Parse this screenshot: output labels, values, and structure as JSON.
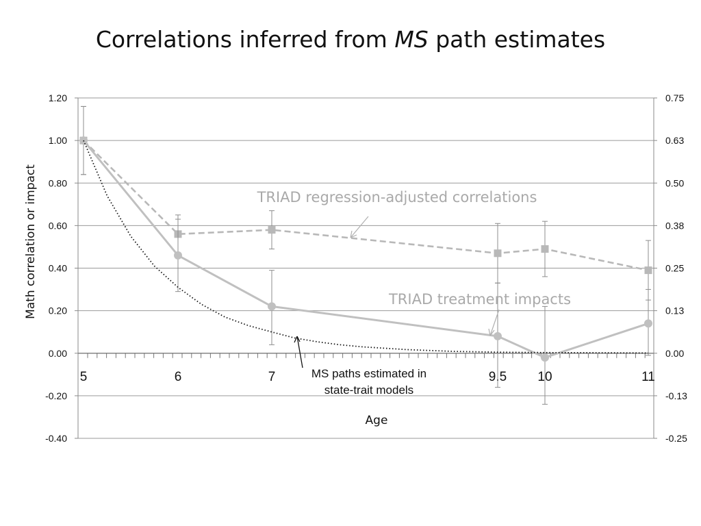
{
  "slide": {
    "title_pre": "Correlations inferred from ",
    "title_em": "MS",
    "title_post": " path estimates"
  },
  "chart_data": {
    "type": "line",
    "xlabel": "Age",
    "ylabel": "Math correlation or impact",
    "grid": true,
    "ylim": [
      -0.4,
      1.2
    ],
    "y2lim": [
      -0.25,
      0.75
    ],
    "x_tick_labels": [
      "5",
      "6",
      "7",
      "9.5",
      "10",
      "11"
    ],
    "y_tick_labels": [
      "1.20",
      "1.00",
      "0.80",
      "0.60",
      "0.40",
      "0.20",
      "0.00",
      "-0.20",
      "-0.40"
    ],
    "y2_tick_labels": [
      "0.75",
      "0.63",
      "0.50",
      "0.38",
      "0.25",
      "0.13",
      "0.00",
      "-0.13",
      "-0.25"
    ],
    "series": [
      {
        "name": "TRIAD regression-adjusted correlations",
        "style": "dashed-square",
        "color": "#b8b8b8",
        "x": [
          5,
          6,
          7,
          9.5,
          10,
          11
        ],
        "y": [
          1.0,
          0.56,
          0.58,
          0.47,
          0.49,
          0.39
        ],
        "err_low": [
          0.84,
          0.47,
          0.49,
          0.33,
          0.36,
          0.25
        ],
        "err_high": [
          1.16,
          0.65,
          0.67,
          0.61,
          0.62,
          0.53
        ]
      },
      {
        "name": "TRIAD treatment impacts",
        "style": "solid-circle",
        "color": "#c0c0c0",
        "x": [
          5,
          6,
          7,
          9.5,
          10,
          11
        ],
        "y": [
          1.0,
          0.46,
          0.22,
          0.08,
          -0.02,
          0.14
        ],
        "err_low": [
          0.84,
          0.29,
          0.04,
          -0.16,
          -0.24,
          -0.01
        ],
        "err_high": [
          1.16,
          0.63,
          0.39,
          0.33,
          0.22,
          0.3
        ]
      },
      {
        "name": "MS paths estimated in state-trait models",
        "style": "dotted",
        "color": "#111111",
        "x": [
          5,
          5.25,
          5.5,
          5.75,
          6,
          6.25,
          6.5,
          6.75,
          7,
          7.25,
          7.5,
          7.75,
          8,
          8.5,
          9,
          9.5,
          10,
          10.5,
          11
        ],
        "y": [
          1.0,
          0.74,
          0.55,
          0.41,
          0.31,
          0.23,
          0.17,
          0.13,
          0.1,
          0.072,
          0.054,
          0.04,
          0.03,
          0.017,
          0.009,
          0.005,
          0.003,
          0.002,
          0.001
        ]
      }
    ],
    "annotations": [
      {
        "text": "TRIAD regression-adjusted correlations",
        "color": "#a9a9a9"
      },
      {
        "text": "TRIAD treatment impacts",
        "color": "#a9a9a9"
      },
      {
        "text_line1": "MS paths estimated in",
        "text_line2": "state-trait models",
        "color": "#111111"
      }
    ]
  }
}
